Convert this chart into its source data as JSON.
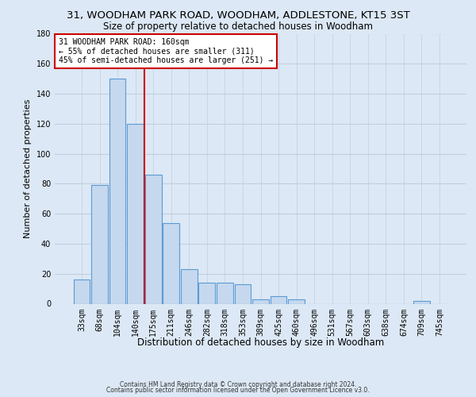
{
  "title1": "31, WOODHAM PARK ROAD, WOODHAM, ADDLESTONE, KT15 3ST",
  "title2": "Size of property relative to detached houses in Woodham",
  "xlabel": "Distribution of detached houses by size in Woodham",
  "ylabel": "Number of detached properties",
  "bar_labels": [
    "33sqm",
    "68sqm",
    "104sqm",
    "140sqm",
    "175sqm",
    "211sqm",
    "246sqm",
    "282sqm",
    "318sqm",
    "353sqm",
    "389sqm",
    "425sqm",
    "460sqm",
    "496sqm",
    "531sqm",
    "567sqm",
    "603sqm",
    "638sqm",
    "674sqm",
    "709sqm",
    "745sqm"
  ],
  "bar_values": [
    16,
    79,
    150,
    120,
    86,
    54,
    23,
    14,
    14,
    13,
    3,
    5,
    3,
    0,
    0,
    0,
    0,
    0,
    0,
    2,
    0
  ],
  "bar_color": "#c5d8ee",
  "bar_edge_color": "#5b9bd5",
  "vline_x": 3.5,
  "vline_color": "#cc0000",
  "ylim": [
    0,
    180
  ],
  "yticks": [
    0,
    20,
    40,
    60,
    80,
    100,
    120,
    140,
    160,
    180
  ],
  "annotation_text": "31 WOODHAM PARK ROAD: 160sqm\n← 55% of detached houses are smaller (311)\n45% of semi-detached houses are larger (251) →",
  "annotation_box_color": "#ffffff",
  "annotation_box_edgecolor": "#cc0000",
  "footer1": "Contains HM Land Registry data © Crown copyright and database right 2024.",
  "footer2": "Contains public sector information licensed under the Open Government Licence v3.0.",
  "background_color": "#dce8f5",
  "plot_bg_color": "#dce8f5",
  "grid_color": "#c0cfe0",
  "title_fontsize": 9.5,
  "subtitle_fontsize": 8.5,
  "tick_fontsize": 7,
  "ylabel_fontsize": 8,
  "xlabel_fontsize": 8.5,
  "annotation_fontsize": 7,
  "footer_fontsize": 5.5
}
